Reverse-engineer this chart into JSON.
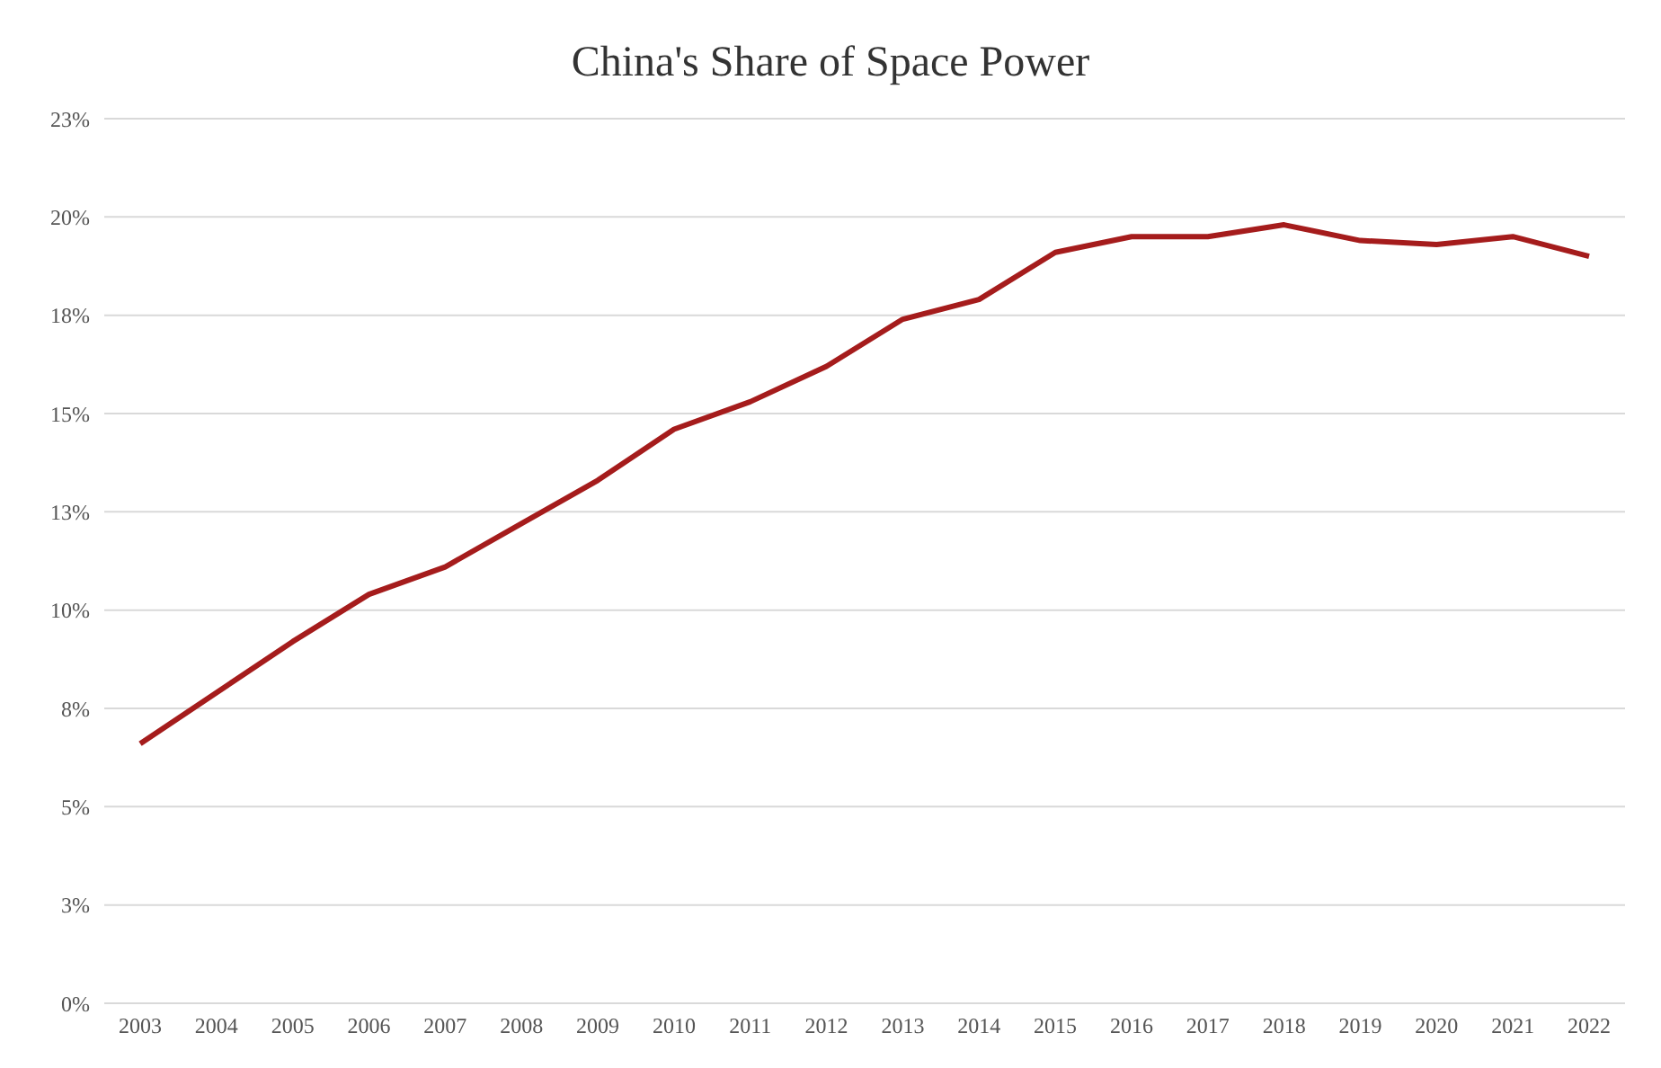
{
  "chart_data": {
    "type": "line",
    "title": "China's Share of Space Power",
    "categories": [
      "2003",
      "2004",
      "2005",
      "2006",
      "2007",
      "2008",
      "2009",
      "2010",
      "2011",
      "2012",
      "2013",
      "2014",
      "2015",
      "2016",
      "2017",
      "2018",
      "2019",
      "2020",
      "2021",
      "2022"
    ],
    "series": [
      {
        "color": "#a51c1c",
        "values": [
          6.6,
          7.9,
          9.2,
          10.4,
          11.1,
          12.2,
          13.3,
          14.6,
          15.3,
          16.2,
          17.4,
          17.9,
          19.1,
          19.5,
          19.5,
          19.8,
          19.4,
          19.3,
          19.5,
          19.0
        ]
      }
    ],
    "ylim": [
      0,
      22.5
    ],
    "yticks": [
      {
        "value": 0,
        "label": "0%"
      },
      {
        "value": 2.5,
        "label": "3%"
      },
      {
        "value": 5,
        "label": "5%"
      },
      {
        "value": 7.5,
        "label": "8%"
      },
      {
        "value": 10,
        "label": "10%"
      },
      {
        "value": 12.5,
        "label": "13%"
      },
      {
        "value": 15,
        "label": "15%"
      },
      {
        "value": 17.5,
        "label": "18%"
      },
      {
        "value": 20,
        "label": "20%"
      },
      {
        "value": 22.5,
        "label": "23%"
      }
    ],
    "grid": "y",
    "legend": false,
    "marker": "none",
    "line_style": "solid"
  }
}
